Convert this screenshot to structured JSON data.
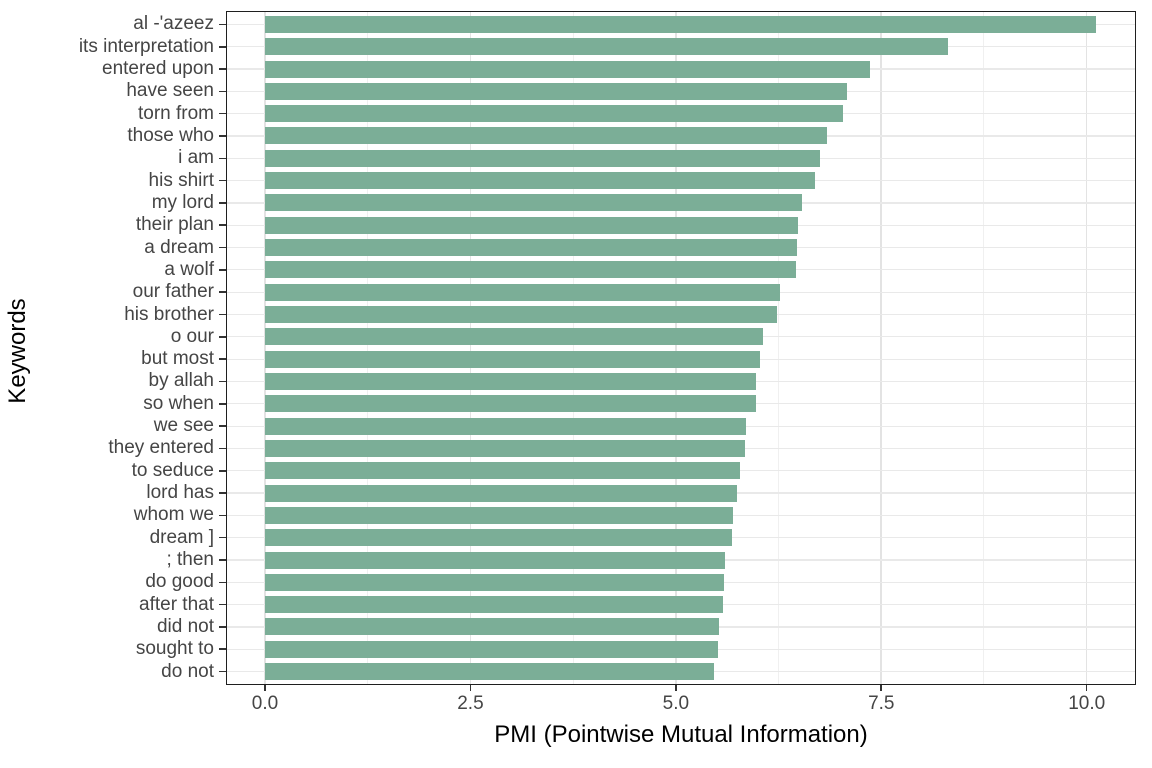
{
  "chart_data": {
    "type": "bar",
    "orientation": "horizontal",
    "title": "",
    "xlabel": "PMI (Pointwise Mutual Information)",
    "ylabel": "Keywords",
    "categories": [
      "al -'azeez",
      "its interpretation",
      "entered upon",
      "have seen",
      "torn from",
      "those who",
      "i am",
      "his shirt",
      "my lord",
      "their plan",
      "a dream",
      "a wolf",
      "our father",
      "his brother",
      "o our",
      "but most",
      "by allah",
      "so when",
      "we see",
      "they entered",
      "to seduce",
      "lord has",
      "whom we",
      "dream ]",
      "; then",
      "do good",
      "after that",
      "did not",
      "sought to",
      "do not"
    ],
    "values": [
      10.11,
      8.31,
      7.36,
      7.08,
      7.03,
      6.84,
      6.76,
      6.69,
      6.54,
      6.49,
      6.47,
      6.46,
      6.27,
      6.23,
      6.06,
      6.02,
      5.98,
      5.98,
      5.85,
      5.84,
      5.78,
      5.75,
      5.7,
      5.68,
      5.6,
      5.58,
      5.57,
      5.52,
      5.51,
      5.47
    ],
    "xlim": [
      -0.475,
      10.6
    ],
    "x_major_ticks": [
      0.0,
      2.5,
      5.0,
      7.5,
      10.0
    ],
    "x_tick_labels": [
      "0.0",
      "2.5",
      "5.0",
      "7.5",
      "10.0"
    ],
    "x_minor_gridlines": [
      1.25,
      3.75,
      6.25,
      8.75
    ],
    "grid": true,
    "legend": false,
    "colors": {
      "bar_fill": "#7bae97",
      "major_grid": "#e3e3e3",
      "minor_grid": "#f0f0f0",
      "horizontal_grid": "#e9e9e9",
      "panel_border": "#1f1f1f",
      "axis_text": "#454545",
      "axis_title": "#000000",
      "background": "#ffffff"
    }
  }
}
